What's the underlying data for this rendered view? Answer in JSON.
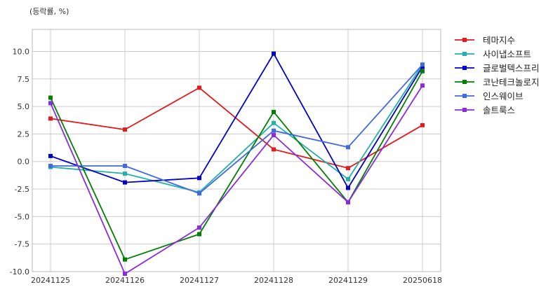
{
  "chart_data": {
    "type": "line",
    "unit_label": "(등락률, %)",
    "categories": [
      "20241125",
      "20241126",
      "20241127",
      "20241128",
      "20241129",
      "20250618"
    ],
    "ylim": [
      -10.0,
      12.0
    ],
    "yticks": [
      -10.0,
      -7.5,
      -5.0,
      -2.5,
      0.0,
      2.5,
      5.0,
      7.5,
      10.0
    ],
    "ytick_labels": [
      "-10.0",
      "-7.5",
      "-5.0",
      "-2.5",
      "0.0",
      "2.5",
      "5.0",
      "7.5",
      "10.0"
    ],
    "grid": true,
    "legend_position": "right",
    "series": [
      {
        "name": "테마지수",
        "color": "#e41a1c",
        "values": [
          3.9,
          2.9,
          6.7,
          1.1,
          -0.6,
          3.3
        ]
      },
      {
        "name": "사이냅소프트",
        "color": "#20b2aa",
        "values": [
          -0.5,
          -1.1,
          -2.8,
          3.5,
          -1.6,
          8.8
        ]
      },
      {
        "name": "글로벌텍스프리",
        "color": "#0000cd",
        "values": [
          0.5,
          -1.9,
          -1.5,
          9.8,
          -2.4,
          8.6
        ]
      },
      {
        "name": "코난테크놀로지",
        "color": "#008000",
        "values": [
          5.8,
          -8.9,
          -6.6,
          4.5,
          -3.7,
          8.2
        ]
      },
      {
        "name": "인스웨이브",
        "color": "#4169e1",
        "values": [
          -0.4,
          -0.4,
          -2.9,
          2.8,
          1.3,
          8.8
        ]
      },
      {
        "name": "솔트룩스",
        "color": "#8a2be2",
        "values": [
          5.3,
          -10.2,
          -6.0,
          2.4,
          -3.7,
          6.9
        ]
      }
    ]
  }
}
